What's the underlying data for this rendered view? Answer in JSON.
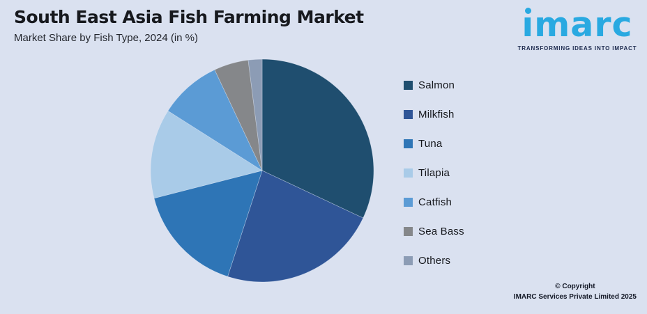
{
  "page": {
    "background_color": "#DAE1F0"
  },
  "header": {
    "title": "South East Asia Fish Farming Market",
    "subtitle": "Market Share by Fish Type, 2024 (in %)"
  },
  "logo": {
    "brand": "imarc",
    "tagline": "TRANSFORMING IDEAS INTO IMPACT",
    "brand_color": "#29A9E1",
    "tagline_color": "#1E2B4F"
  },
  "chart_data": {
    "type": "pie",
    "title": "South East Asia Fish Farming Market",
    "subtitle": "Market Share by Fish Type, 2024 (in %)",
    "unit": "%",
    "categories": [
      "Salmon",
      "Milkfish",
      "Tuna",
      "Tilapia",
      "Catfish",
      "Sea Bass",
      "Others"
    ],
    "values": [
      32,
      23,
      16,
      13,
      9,
      5,
      2
    ],
    "colors": [
      "#1F4E6F",
      "#2F5597",
      "#2E75B6",
      "#A9CBE8",
      "#5B9BD5",
      "#85878A",
      "#8C9CB5"
    ],
    "start_angle_deg": 0,
    "direction": "clockwise",
    "legend_position": "right"
  },
  "footer": {
    "line1": "© Copyright",
    "line2": "IMARC Services Private Limited 2025"
  }
}
